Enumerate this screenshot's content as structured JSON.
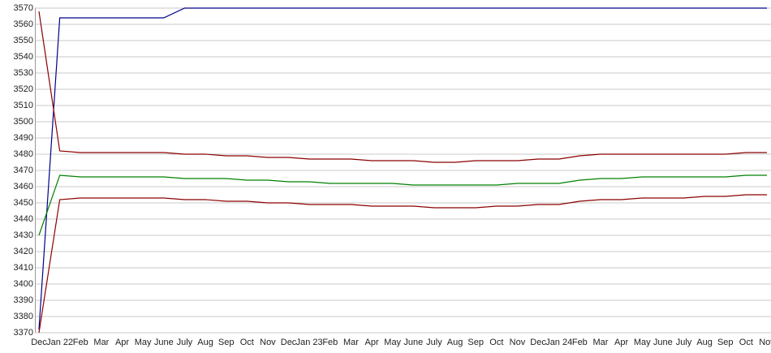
{
  "chart_data": {
    "type": "line",
    "categories": [
      "Dec",
      "Jan 22",
      "Feb",
      "Mar",
      "Apr",
      "May",
      "June",
      "July",
      "Aug",
      "Sep",
      "Oct",
      "Nov",
      "Dec",
      "Jan 23",
      "Feb",
      "Mar",
      "Apr",
      "May",
      "June",
      "July",
      "Aug",
      "Sep",
      "Oct",
      "Nov",
      "Dec",
      "Jan 24",
      "Feb",
      "Mar",
      "Apr",
      "May",
      "June",
      "July",
      "Aug",
      "Sep",
      "Oct",
      "Nov"
    ],
    "ylim": [
      3370,
      3570
    ],
    "yticks": [
      3370,
      3380,
      3390,
      3400,
      3410,
      3420,
      3430,
      3440,
      3450,
      3460,
      3470,
      3480,
      3490,
      3500,
      3510,
      3520,
      3530,
      3540,
      3550,
      3560,
      3570
    ],
    "grid": true,
    "series": [
      {
        "color": "#00008b",
        "values": [
          3372,
          3564,
          3564,
          3564,
          3564,
          3564,
          3564,
          3570,
          3570,
          3570,
          3570,
          3570,
          3570,
          3570,
          3570,
          3570,
          3570,
          3570,
          3570,
          3570,
          3570,
          3570,
          3570,
          3570,
          3570,
          3570,
          3570,
          3570,
          3570,
          3570,
          3570,
          3570,
          3570,
          3570,
          3570,
          3570
        ]
      },
      {
        "color": "#8b0000",
        "values": [
          3568,
          3482,
          3481,
          3481,
          3481,
          3481,
          3481,
          3480,
          3480,
          3479,
          3479,
          3478,
          3478,
          3477,
          3477,
          3477,
          3476,
          3476,
          3476,
          3475,
          3475,
          3476,
          3476,
          3476,
          3477,
          3477,
          3479,
          3480,
          3480,
          3480,
          3480,
          3480,
          3480,
          3480,
          3481,
          3481
        ]
      },
      {
        "color": "#008000",
        "values": [
          3430,
          3467,
          3466,
          3466,
          3466,
          3466,
          3466,
          3465,
          3465,
          3465,
          3464,
          3464,
          3463,
          3463,
          3462,
          3462,
          3462,
          3462,
          3461,
          3461,
          3461,
          3461,
          3461,
          3462,
          3462,
          3462,
          3464,
          3465,
          3465,
          3466,
          3466,
          3466,
          3466,
          3466,
          3467,
          3467
        ]
      },
      {
        "color": "#8b0000",
        "values": [
          3370,
          3452,
          3453,
          3453,
          3453,
          3453,
          3453,
          3452,
          3452,
          3451,
          3451,
          3450,
          3450,
          3449,
          3449,
          3449,
          3448,
          3448,
          3448,
          3447,
          3447,
          3447,
          3448,
          3448,
          3449,
          3449,
          3451,
          3452,
          3452,
          3453,
          3453,
          3453,
          3454,
          3454,
          3455,
          3455
        ]
      }
    ]
  }
}
